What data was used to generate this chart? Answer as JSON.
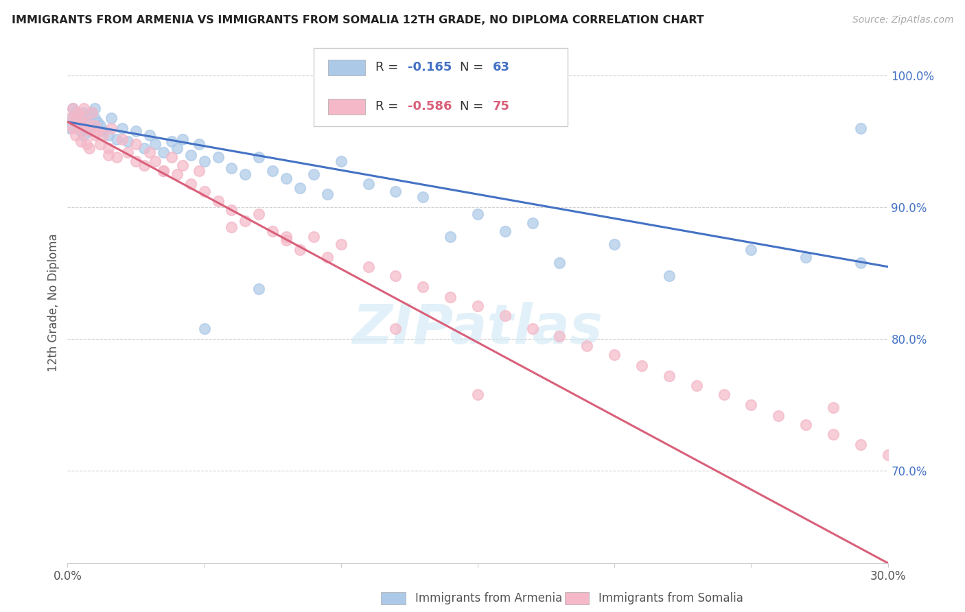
{
  "title": "IMMIGRANTS FROM ARMENIA VS IMMIGRANTS FROM SOMALIA 12TH GRADE, NO DIPLOMA CORRELATION CHART",
  "source": "Source: ZipAtlas.com",
  "ylabel": "12th Grade, No Diploma",
  "legend_armenia": "Immigrants from Armenia",
  "legend_somalia": "Immigrants from Somalia",
  "R_armenia": "-0.165",
  "N_armenia": "63",
  "R_somalia": "-0.586",
  "N_somalia": "75",
  "color_armenia": "#adc9e8",
  "color_somalia": "#f4b8c8",
  "line_color_armenia": "#4472c4",
  "line_color_somalia": "#d9607a",
  "watermark": "ZIPatlas",
  "armenia_scatter_x": [
    0.001,
    0.002,
    0.002,
    0.003,
    0.003,
    0.004,
    0.004,
    0.005,
    0.005,
    0.006,
    0.006,
    0.007,
    0.007,
    0.008,
    0.008,
    0.009,
    0.01,
    0.01,
    0.011,
    0.012,
    0.013,
    0.015,
    0.016,
    0.018,
    0.02,
    0.022,
    0.025,
    0.028,
    0.03,
    0.032,
    0.035,
    0.038,
    0.04,
    0.042,
    0.045,
    0.048,
    0.05,
    0.055,
    0.06,
    0.065,
    0.07,
    0.075,
    0.08,
    0.085,
    0.09,
    0.095,
    0.1,
    0.11,
    0.12,
    0.13,
    0.15,
    0.17,
    0.2,
    0.25,
    0.27,
    0.14,
    0.16,
    0.18,
    0.22,
    0.29,
    0.05,
    0.07,
    0.29
  ],
  "armenia_scatter_y": [
    0.96,
    0.975,
    0.968,
    0.972,
    0.965,
    0.97,
    0.962,
    0.968,
    0.958,
    0.972,
    0.955,
    0.97,
    0.96,
    0.965,
    0.958,
    0.972,
    0.975,
    0.968,
    0.965,
    0.962,
    0.958,
    0.955,
    0.968,
    0.952,
    0.96,
    0.95,
    0.958,
    0.945,
    0.955,
    0.948,
    0.942,
    0.95,
    0.945,
    0.952,
    0.94,
    0.948,
    0.935,
    0.938,
    0.93,
    0.925,
    0.938,
    0.928,
    0.922,
    0.915,
    0.925,
    0.91,
    0.935,
    0.918,
    0.912,
    0.908,
    0.895,
    0.888,
    0.872,
    0.868,
    0.862,
    0.878,
    0.882,
    0.858,
    0.848,
    0.858,
    0.808,
    0.838,
    0.96
  ],
  "somalia_scatter_x": [
    0.001,
    0.002,
    0.002,
    0.003,
    0.003,
    0.004,
    0.004,
    0.005,
    0.005,
    0.006,
    0.006,
    0.007,
    0.007,
    0.008,
    0.008,
    0.009,
    0.01,
    0.01,
    0.011,
    0.012,
    0.013,
    0.015,
    0.016,
    0.018,
    0.02,
    0.022,
    0.025,
    0.028,
    0.03,
    0.032,
    0.035,
    0.038,
    0.04,
    0.042,
    0.045,
    0.048,
    0.05,
    0.055,
    0.06,
    0.065,
    0.07,
    0.075,
    0.08,
    0.085,
    0.09,
    0.095,
    0.1,
    0.11,
    0.12,
    0.13,
    0.14,
    0.15,
    0.16,
    0.17,
    0.18,
    0.19,
    0.2,
    0.21,
    0.22,
    0.23,
    0.24,
    0.25,
    0.26,
    0.27,
    0.28,
    0.29,
    0.3,
    0.015,
    0.025,
    0.035,
    0.06,
    0.08,
    0.12,
    0.15,
    0.28
  ],
  "somalia_scatter_y": [
    0.968,
    0.975,
    0.96,
    0.968,
    0.955,
    0.972,
    0.962,
    0.968,
    0.95,
    0.975,
    0.958,
    0.965,
    0.948,
    0.96,
    0.945,
    0.972,
    0.962,
    0.955,
    0.958,
    0.948,
    0.955,
    0.945,
    0.96,
    0.938,
    0.952,
    0.942,
    0.948,
    0.932,
    0.942,
    0.935,
    0.928,
    0.938,
    0.925,
    0.932,
    0.918,
    0.928,
    0.912,
    0.905,
    0.898,
    0.89,
    0.895,
    0.882,
    0.875,
    0.868,
    0.878,
    0.862,
    0.872,
    0.855,
    0.848,
    0.84,
    0.832,
    0.825,
    0.818,
    0.808,
    0.802,
    0.795,
    0.788,
    0.78,
    0.772,
    0.765,
    0.758,
    0.75,
    0.742,
    0.735,
    0.728,
    0.72,
    0.712,
    0.94,
    0.935,
    0.928,
    0.885,
    0.878,
    0.808,
    0.758,
    0.748
  ],
  "arm_line_x0": 0.0,
  "arm_line_y0": 0.965,
  "arm_line_x1": 0.3,
  "arm_line_y1": 0.855,
  "som_line_x0": 0.0,
  "som_line_y0": 0.965,
  "som_line_x1": 0.3,
  "som_line_y1": 0.63,
  "xlim": [
    0.0,
    0.3
  ],
  "ylim": [
    0.63,
    1.025
  ],
  "yticks": [
    0.7,
    0.8,
    0.9,
    1.0
  ],
  "yticklabels": [
    "70.0%",
    "80.0%",
    "90.0%",
    "100.0%"
  ],
  "xticks": [
    0.0,
    0.05,
    0.1,
    0.15,
    0.2,
    0.25,
    0.3
  ],
  "xticklabels": [
    "0.0%",
    "",
    "",
    "",
    "",
    "",
    "30.0%"
  ],
  "figsize": [
    14.06,
    8.92
  ],
  "dpi": 100
}
